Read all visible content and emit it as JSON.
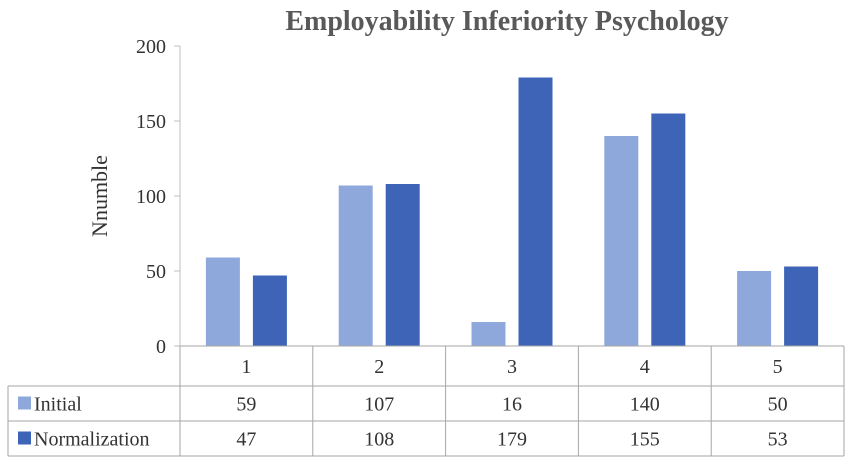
{
  "chart_data": {
    "type": "bar",
    "title": "Employability Inferiority Psychology",
    "ylabel": "Nnumble",
    "xlabel": "",
    "categories": [
      "1",
      "2",
      "3",
      "4",
      "5"
    ],
    "ylim": [
      0,
      200
    ],
    "yticks": [
      0,
      50,
      100,
      150,
      200
    ],
    "series": [
      {
        "name": "Initial",
        "color": "#8FA8DC",
        "values": [
          59,
          107,
          16,
          140,
          50
        ]
      },
      {
        "name": "Normalization",
        "color": "#3E64B8",
        "values": [
          47,
          108,
          179,
          155,
          53
        ]
      }
    ],
    "data_table": true,
    "grid": false
  }
}
